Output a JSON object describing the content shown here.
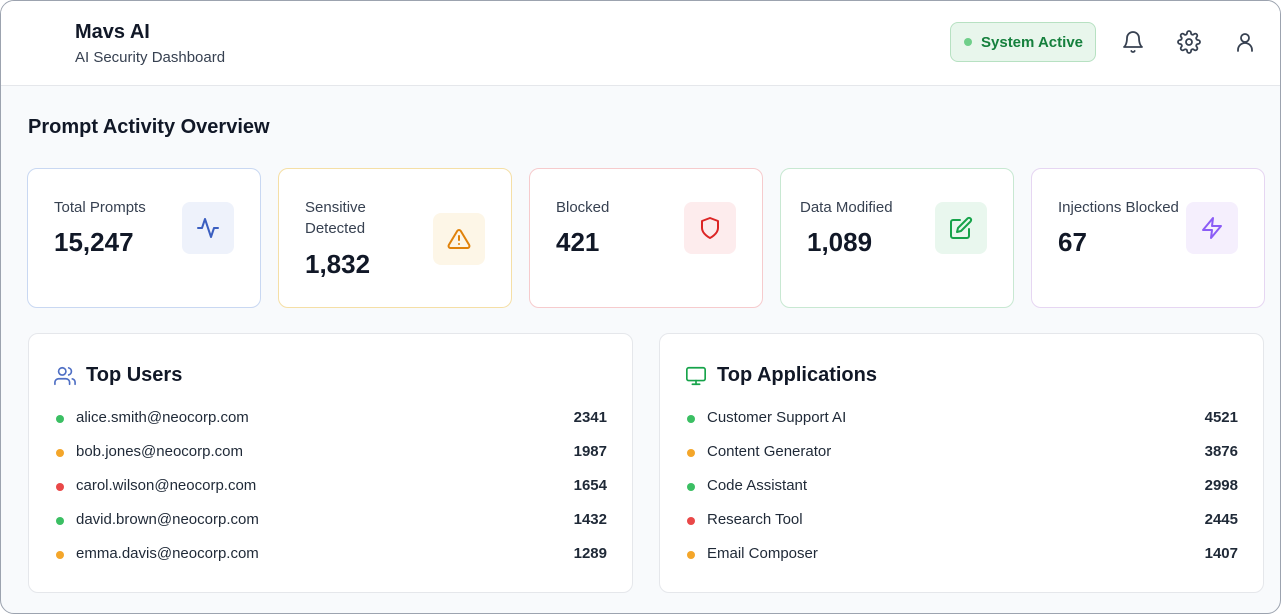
{
  "header": {
    "title": "Mavs AI",
    "subtitle": "AI Security Dashboard",
    "status_label": "System Active"
  },
  "overview_title": "Prompt Activity Overview",
  "stats": [
    {
      "label": "Total Prompts",
      "value": "15,247",
      "color": "#3b5fc0",
      "bg": "#eef2fb",
      "border": "#c9d8f2",
      "icon": "activity-icon"
    },
    {
      "label": "Sensitive Detected",
      "value": "1,832",
      "color": "#e0820b",
      "bg": "#fdf6e7",
      "border": "#f5dfa6",
      "icon": "warning-triangle-icon"
    },
    {
      "label": "Blocked",
      "value": "421",
      "color": "#dc2626",
      "bg": "#fdeced",
      "border": "#f6cbcd",
      "icon": "shield-icon"
    },
    {
      "label": "Data Modified",
      "value": "1,089",
      "color": "#16a34a",
      "bg": "#e9f7ee",
      "border": "#c8e8d2",
      "icon": "edit-icon"
    },
    {
      "label": "Injections Blocked",
      "value": "67",
      "color": "#8b5cf6",
      "bg": "#f5effd",
      "border": "#e6d6f2",
      "icon": "lightning-icon"
    }
  ],
  "top_users": {
    "title": "Top Users",
    "icon": "users-icon",
    "items": [
      {
        "name": "alice.smith@neocorp.com",
        "count": "2341",
        "dot": "#3bbf63"
      },
      {
        "name": "bob.jones@neocorp.com",
        "count": "1987",
        "dot": "#f4a62a"
      },
      {
        "name": "carol.wilson@neocorp.com",
        "count": "1654",
        "dot": "#e94848"
      },
      {
        "name": "david.brown@neocorp.com",
        "count": "1432",
        "dot": "#3bbf63"
      },
      {
        "name": "emma.davis@neocorp.com",
        "count": "1289",
        "dot": "#f4a62a"
      }
    ]
  },
  "top_apps": {
    "title": "Top Applications",
    "icon": "monitor-icon",
    "items": [
      {
        "name": "Customer Support AI",
        "count": "4521",
        "dot": "#3bbf63"
      },
      {
        "name": "Content Generator",
        "count": "3876",
        "dot": "#f4a62a"
      },
      {
        "name": "Code Assistant",
        "count": "2998",
        "dot": "#3bbf63"
      },
      {
        "name": "Research Tool",
        "count": "2445",
        "dot": "#e94848"
      },
      {
        "name": "Email Composer",
        "count": "1407",
        "dot": "#f4a62a"
      }
    ]
  },
  "colors": {
    "accent_green": "#15803d",
    "users_icon": "#4f6fc4",
    "apps_icon": "#16a34a"
  }
}
